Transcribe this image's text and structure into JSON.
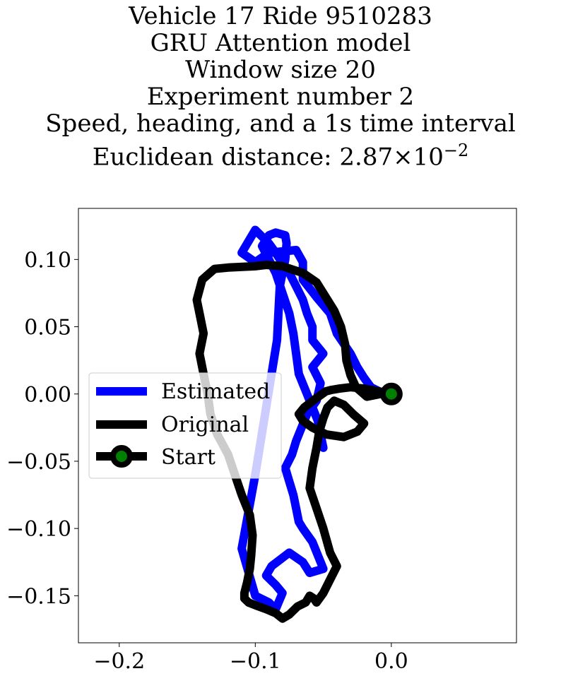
{
  "chart_data": {
    "type": "line",
    "title_lines": [
      "Vehicle 17 Ride 9510283",
      "GRU Attention model",
      "Window size 20",
      "Experiment number 2",
      "Speed, heading, and a 1s time interval"
    ],
    "title_distance_prefix": "Euclidean distance: ",
    "title_distance_mantissa": "2.87",
    "title_distance_times": "×",
    "title_distance_base": "10",
    "title_distance_exponent": "−2",
    "xlim": [
      -0.23,
      0.092
    ],
    "ylim": [
      -0.185,
      0.138
    ],
    "xticks": [
      -0.2,
      -0.1,
      0.0
    ],
    "xtick_labels": [
      "−0.2",
      "−0.1",
      "0.0"
    ],
    "yticks": [
      0.1,
      0.05,
      0.0,
      -0.05,
      -0.1,
      -0.15
    ],
    "ytick_labels": [
      "0.10",
      "0.05",
      "0.00",
      "−0.05",
      "−0.10",
      "−0.15"
    ],
    "grid": false,
    "legend_position": "center-left",
    "series": [
      {
        "name": "Estimated",
        "color": "#0000ff",
        "x": [
          0.0,
          -0.005,
          -0.015,
          -0.02,
          -0.025,
          -0.03,
          -0.04,
          -0.045,
          -0.055,
          -0.065,
          -0.065,
          -0.07,
          -0.09,
          -0.1,
          -0.11,
          -0.1,
          -0.09,
          -0.085,
          -0.08,
          -0.075,
          -0.07,
          -0.065,
          -0.062,
          -0.058,
          -0.058,
          -0.05,
          -0.058,
          -0.052,
          -0.055,
          -0.062,
          -0.066,
          -0.07,
          -0.073,
          -0.078,
          -0.075,
          -0.072,
          -0.07,
          -0.068,
          -0.065,
          -0.058,
          -0.05,
          -0.06,
          -0.065,
          -0.075,
          -0.088,
          -0.092,
          -0.085,
          -0.08,
          -0.085,
          -0.09,
          -0.1,
          -0.11,
          -0.1,
          -0.092,
          -0.084,
          -0.082,
          -0.078,
          -0.077,
          -0.078,
          -0.085,
          -0.09,
          -0.095,
          -0.09,
          -0.085,
          -0.08,
          -0.075,
          -0.072,
          -0.07,
          -0.068,
          -0.062,
          -0.058,
          -0.054,
          -0.052,
          -0.05
        ],
        "y": [
          0.0,
          0.0,
          0.005,
          0.012,
          0.02,
          0.03,
          0.045,
          0.06,
          0.072,
          0.085,
          0.098,
          0.107,
          0.105,
          0.098,
          0.105,
          0.122,
          0.112,
          0.105,
          0.097,
          0.09,
          0.08,
          0.07,
          0.06,
          0.05,
          0.04,
          0.03,
          0.02,
          0.008,
          -0.005,
          -0.015,
          -0.025,
          -0.035,
          -0.045,
          -0.055,
          -0.065,
          -0.075,
          -0.085,
          -0.095,
          -0.1,
          -0.11,
          -0.13,
          -0.133,
          -0.125,
          -0.118,
          -0.128,
          -0.135,
          -0.142,
          -0.148,
          -0.16,
          -0.155,
          -0.15,
          -0.115,
          -0.06,
          -0.01,
          0.04,
          0.08,
          0.1,
          0.112,
          0.118,
          0.12,
          0.118,
          0.11,
          0.1,
          0.09,
          0.075,
          0.06,
          0.045,
          0.03,
          0.015,
          0.0,
          -0.01,
          -0.02,
          -0.03,
          -0.04
        ]
      },
      {
        "name": "Original",
        "color": "#000000",
        "x": [
          0.0,
          -0.008,
          -0.018,
          -0.026,
          -0.03,
          -0.033,
          -0.034,
          -0.037,
          -0.042,
          -0.05,
          -0.055,
          -0.065,
          -0.08,
          -0.092,
          -0.1,
          -0.12,
          -0.13,
          -0.139,
          -0.143,
          -0.14,
          -0.138,
          -0.141,
          -0.138,
          -0.135,
          -0.133,
          -0.128,
          -0.12,
          -0.115,
          -0.11,
          -0.104,
          -0.102,
          -0.103,
          -0.104,
          -0.106,
          -0.108,
          -0.108,
          -0.105,
          -0.1,
          -0.092,
          -0.085,
          -0.08,
          -0.075,
          -0.069,
          -0.063,
          -0.06,
          -0.057,
          -0.055,
          -0.05,
          -0.045,
          -0.04,
          -0.045,
          -0.05,
          -0.055,
          -0.06,
          -0.058,
          -0.055,
          -0.053,
          -0.05,
          -0.047,
          -0.042,
          -0.035,
          -0.028,
          -0.02,
          -0.025,
          -0.035,
          -0.048,
          -0.058,
          -0.065,
          -0.068,
          -0.064,
          -0.055,
          -0.048,
          -0.044,
          -0.038,
          -0.03,
          -0.02,
          -0.01,
          -0.003,
          0.0
        ],
        "y": [
          0.0,
          0.0,
          -0.002,
          0.005,
          0.014,
          0.025,
          0.037,
          0.05,
          0.062,
          0.075,
          0.083,
          0.09,
          0.095,
          0.096,
          0.095,
          0.094,
          0.093,
          0.085,
          0.07,
          0.055,
          0.045,
          0.03,
          0.015,
          0.0,
          -0.015,
          -0.03,
          -0.045,
          -0.06,
          -0.075,
          -0.09,
          -0.105,
          -0.12,
          -0.13,
          -0.14,
          -0.148,
          -0.152,
          -0.155,
          -0.157,
          -0.16,
          -0.163,
          -0.167,
          -0.164,
          -0.158,
          -0.155,
          -0.15,
          -0.152,
          -0.155,
          -0.148,
          -0.138,
          -0.128,
          -0.118,
          -0.1,
          -0.085,
          -0.07,
          -0.055,
          -0.04,
          -0.028,
          -0.018,
          -0.01,
          -0.005,
          -0.008,
          -0.015,
          -0.022,
          -0.028,
          -0.032,
          -0.03,
          -0.025,
          -0.02,
          -0.015,
          -0.01,
          -0.003,
          0.002,
          0.003,
          0.004,
          0.005,
          0.004,
          0.002,
          0.001,
          0.0
        ]
      }
    ],
    "start_point": {
      "name": "Start",
      "x": 0.0,
      "y": 0.0,
      "marker_color": "#008000",
      "edge_color": "#000000"
    }
  }
}
